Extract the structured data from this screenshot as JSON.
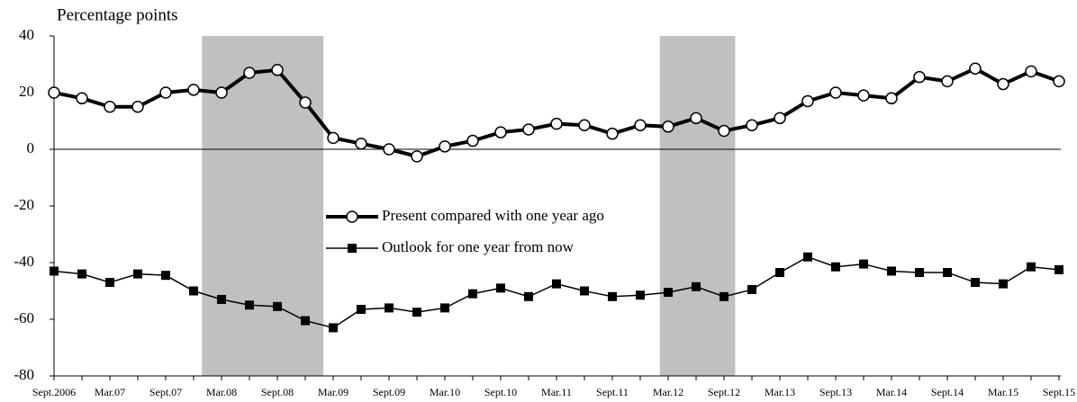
{
  "chart_data": {
    "type": "line",
    "y_axis_label": "Percentage points",
    "categories": [
      "Sept.2006",
      null,
      "Mar.07",
      null,
      "Sept.07",
      null,
      "Mar.08",
      null,
      "Sept.08",
      null,
      "Mar.09",
      null,
      "Sept.09",
      null,
      "Mar.10",
      null,
      "Sept.10",
      null,
      "Mar.11",
      null,
      "Sept.11",
      null,
      "Mar.12",
      null,
      "Sept.12",
      null,
      "Mar.13",
      null,
      "Sept.13",
      null,
      "Mar.14",
      null,
      "Sept.14",
      null,
      "Mar.15",
      null,
      "Sept.15"
    ],
    "series": [
      {
        "name": "Present compared with one year ago",
        "color": "#000000",
        "marker": "circle",
        "values": [
          20,
          18,
          15,
          15,
          20,
          21,
          20,
          27,
          28,
          16.5,
          4,
          2,
          0,
          -2.5,
          1,
          3,
          6,
          7,
          9,
          8.5,
          5.5,
          8.5,
          8,
          11,
          6.5,
          8.5,
          11,
          17,
          20,
          19,
          18,
          25.5,
          24,
          28.5,
          23,
          27.5,
          24
        ]
      },
      {
        "name": "Outlook for one year from now",
        "color": "#000000",
        "marker": "square",
        "values": [
          -43,
          -44,
          -47,
          -44,
          -44.5,
          -50,
          -53,
          -55,
          -55.5,
          -60.5,
          -63,
          -56.5,
          -56,
          -57.5,
          -56,
          -51,
          -49,
          -52,
          -47.5,
          -50,
          -52,
          -51.5,
          -50.5,
          -48.5,
          -52,
          -49.5,
          -43.5,
          -38,
          -41.5,
          -40.5,
          -43,
          -43.5,
          -43.5,
          -47,
          -47.5,
          -41.5,
          -42.5
        ]
      }
    ],
    "ylim": [
      -80,
      40
    ],
    "yticks": [
      -80,
      -60,
      -40,
      -20,
      0,
      20,
      40
    ],
    "shaded_ranges": [
      [
        5.3,
        9.65
      ],
      [
        21.7,
        24.4
      ]
    ],
    "shade_color": "#c0c0c0"
  }
}
